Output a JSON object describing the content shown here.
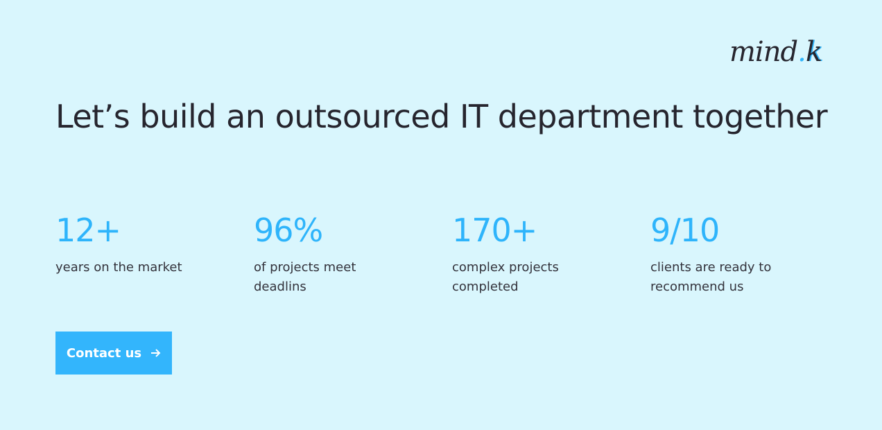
{
  "logo": {
    "main": "mind",
    "accent": "k"
  },
  "header": {
    "title": "Let’s build an outsourced IT department together"
  },
  "stats": [
    {
      "number": "12+",
      "label": "years on the market"
    },
    {
      "number": "96%",
      "label": "of projects meet deadlins"
    },
    {
      "number": "170+",
      "label": "complex projects completed"
    },
    {
      "number": "9/10",
      "label": "clients are ready to recommend us"
    }
  ],
  "button": {
    "label": "Contact us"
  }
}
